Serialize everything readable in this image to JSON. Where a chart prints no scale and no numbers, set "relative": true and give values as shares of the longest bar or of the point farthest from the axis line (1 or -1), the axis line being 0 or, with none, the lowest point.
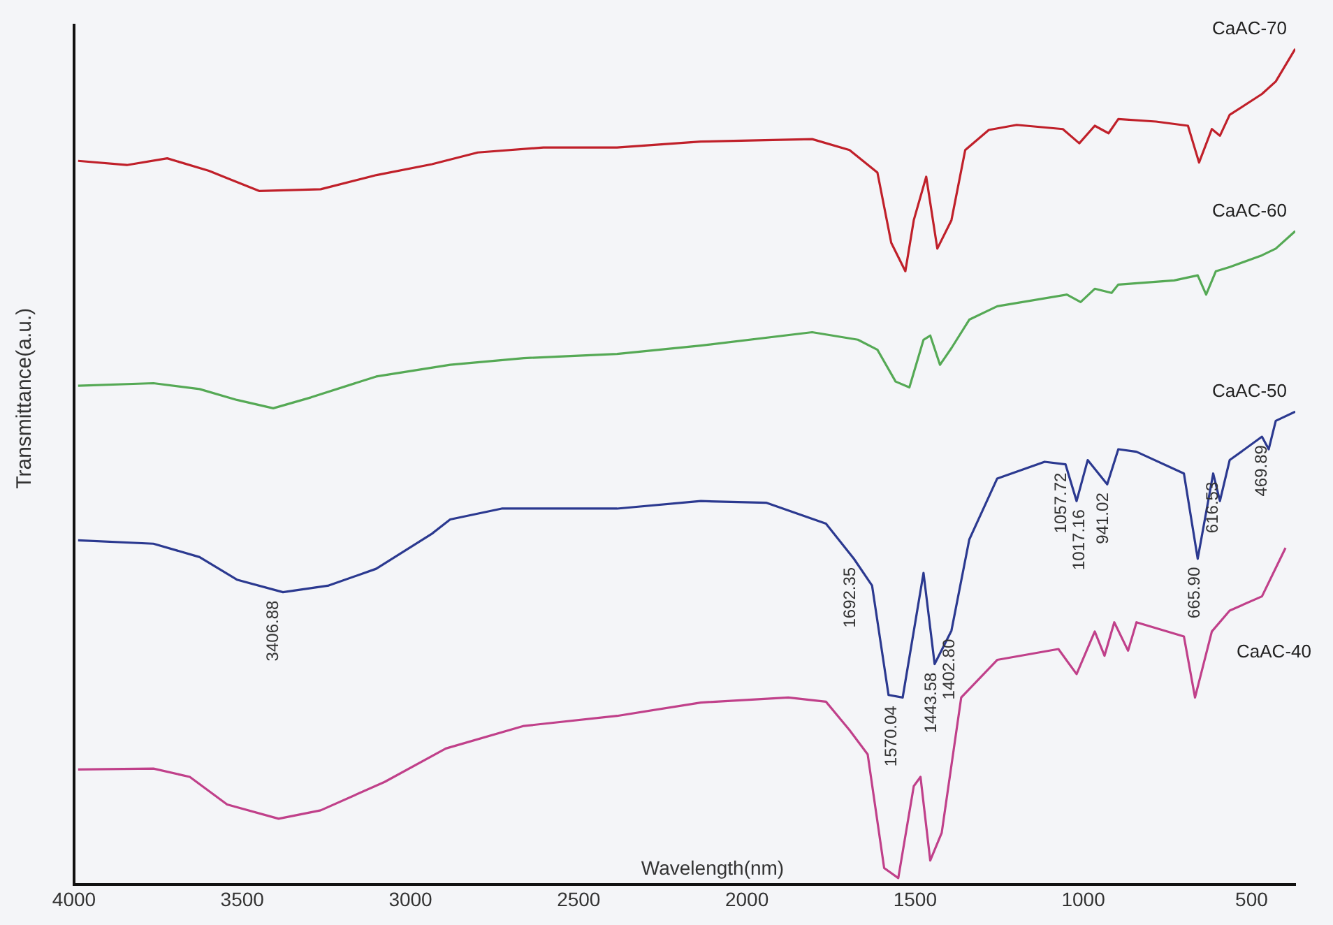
{
  "chart_data": {
    "type": "line",
    "xlabel": "Wavelength(nm)",
    "ylabel": "Transmittance(a.u.)",
    "relative": true,
    "xlim": [
      4000,
      370
    ],
    "xticks": [
      4000,
      3500,
      3000,
      2500,
      2000,
      1500,
      1000,
      500
    ],
    "series": [
      {
        "name": "CaAC-70",
        "color": "#c0202a",
        "x": [
          3988,
          3843,
          3723,
          3599,
          3450,
          3267,
          3101,
          2936,
          2800,
          2605,
          2386,
          2137,
          1806,
          1695,
          1612,
          1571,
          1529,
          1504,
          1467,
          1434,
          1392,
          1351,
          1281,
          1198,
          1061,
          1012,
          966,
          925,
          896,
          784,
          689,
          656,
          618,
          594,
          565,
          469,
          428,
          370
        ],
        "values": [
          0.866,
          0.861,
          0.869,
          0.854,
          0.83,
          0.832,
          0.849,
          0.862,
          0.876,
          0.882,
          0.882,
          0.889,
          0.892,
          0.879,
          0.852,
          0.768,
          0.734,
          0.795,
          0.847,
          0.761,
          0.795,
          0.879,
          0.903,
          0.909,
          0.904,
          0.887,
          0.908,
          0.899,
          0.916,
          0.913,
          0.908,
          0.864,
          0.904,
          0.896,
          0.921,
          0.946,
          0.961,
          1.0
        ]
      },
      {
        "name": "CaAC-60",
        "color": "#55a955",
        "x": [
          3988,
          3764,
          3627,
          3516,
          3408,
          3296,
          3102,
          2882,
          2663,
          2386,
          2137,
          1806,
          1670,
          1612,
          1558,
          1517,
          1475,
          1455,
          1426,
          1392,
          1339,
          1256,
          1049,
          1008,
          966,
          916,
          896,
          730,
          660,
          635,
          606,
          565,
          469,
          428,
          370
        ],
        "values": [
          0.597,
          0.6,
          0.593,
          0.58,
          0.57,
          0.583,
          0.608,
          0.622,
          0.63,
          0.635,
          0.645,
          0.661,
          0.652,
          0.64,
          0.602,
          0.595,
          0.652,
          0.657,
          0.622,
          0.642,
          0.676,
          0.692,
          0.706,
          0.697,
          0.713,
          0.708,
          0.718,
          0.723,
          0.729,
          0.706,
          0.734,
          0.739,
          0.753,
          0.761,
          0.782
        ]
      },
      {
        "name": "CaAC-50",
        "color": "#2b3990",
        "x": [
          3988,
          3764,
          3627,
          3516,
          3379,
          3243,
          3102,
          2936,
          2882,
          2729,
          2386,
          2137,
          1943,
          1765,
          1682,
          1628,
          1579,
          1537,
          1475,
          1442,
          1392,
          1339,
          1256,
          1115,
          1053,
          1020,
          987,
          929,
          896,
          842,
          701,
          660,
          614,
          594,
          565,
          469,
          449,
          428,
          370
        ],
        "values": [
          0.412,
          0.408,
          0.392,
          0.365,
          0.35,
          0.358,
          0.378,
          0.42,
          0.437,
          0.45,
          0.45,
          0.459,
          0.457,
          0.432,
          0.39,
          0.358,
          0.227,
          0.224,
          0.373,
          0.264,
          0.304,
          0.413,
          0.486,
          0.506,
          0.503,
          0.459,
          0.508,
          0.479,
          0.521,
          0.518,
          0.492,
          0.39,
          0.492,
          0.459,
          0.508,
          0.536,
          0.521,
          0.555,
          0.566
        ]
      },
      {
        "name": "CaAC-40",
        "color": "#c0408a",
        "x": [
          3988,
          3764,
          3656,
          3545,
          3392,
          3267,
          3077,
          2895,
          2663,
          2386,
          2137,
          1877,
          1765,
          1695,
          1641,
          1592,
          1550,
          1504,
          1484,
          1455,
          1421,
          1363,
          1256,
          1074,
          1020,
          966,
          937,
          908,
          867,
          842,
          701,
          668,
          618,
          565,
          469,
          399
        ],
        "values": [
          0.138,
          0.139,
          0.129,
          0.096,
          0.079,
          0.089,
          0.123,
          0.163,
          0.19,
          0.202,
          0.218,
          0.224,
          0.219,
          0.185,
          0.156,
          0.02,
          0.008,
          0.118,
          0.129,
          0.029,
          0.062,
          0.224,
          0.269,
          0.282,
          0.252,
          0.303,
          0.274,
          0.314,
          0.28,
          0.314,
          0.297,
          0.224,
          0.303,
          0.328,
          0.345,
          0.403
        ]
      }
    ],
    "annotations": [
      {
        "text": "3406.88",
        "x": 3406.88,
        "y": 0.35
      },
      {
        "text": "1692.35",
        "x": 1692.35,
        "y": 0.39
      },
      {
        "text": "1570.04",
        "x": 1570.04,
        "y": 0.224
      },
      {
        "text": "1443.58",
        "x": 1443.58,
        "y": 0.264
      },
      {
        "text": "1402.80",
        "x": 1402.8,
        "y": 0.304
      },
      {
        "text": "1057.72",
        "x": 1057.72,
        "y": 0.503
      },
      {
        "text": "1017.16",
        "x": 1017.16,
        "y": 0.459
      },
      {
        "text": "941.02",
        "x": 941.02,
        "y": 0.479
      },
      {
        "text": "665.90",
        "x": 665.9,
        "y": 0.39
      },
      {
        "text": "616.53",
        "x": 616.53,
        "y": 0.492
      },
      {
        "text": "469.89",
        "x": 469.89,
        "y": 0.536
      }
    ]
  }
}
